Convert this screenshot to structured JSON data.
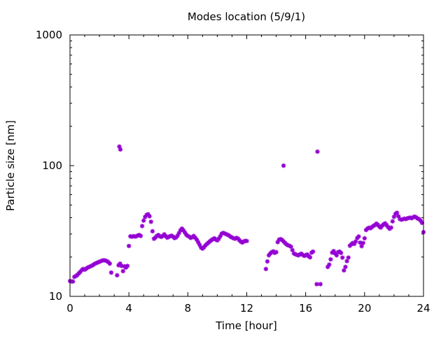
{
  "chart_data": {
    "type": "scatter",
    "title": "Modes location (5/9/1)",
    "xlabel": "Time [hour]",
    "ylabel": "Particle size [nm]",
    "xlim": [
      0,
      24
    ],
    "ylim": [
      10,
      1000
    ],
    "yscale": "log",
    "grid": false,
    "legend": "none",
    "marker_color": "#9400d3",
    "x_ticks": [
      0,
      4,
      8,
      12,
      16,
      20,
      24
    ],
    "y_ticks": [
      10,
      100,
      1000
    ],
    "x_tick_labels": [
      "0",
      "4",
      "8",
      "12",
      "16",
      "20",
      "24"
    ],
    "y_tick_labels": [
      "10",
      "100",
      "1000"
    ],
    "points": [
      [
        0.0,
        13.1
      ],
      [
        0.1,
        13.0
      ],
      [
        0.2,
        13.0
      ],
      [
        0.3,
        14.1
      ],
      [
        0.4,
        14.3
      ],
      [
        0.5,
        14.6
      ],
      [
        0.6,
        15.0
      ],
      [
        0.7,
        15.4
      ],
      [
        0.8,
        15.9
      ],
      [
        0.9,
        16.2
      ],
      [
        1.0,
        16.0
      ],
      [
        1.1,
        16.3
      ],
      [
        1.2,
        16.6
      ],
      [
        1.3,
        16.8
      ],
      [
        1.4,
        17.0
      ],
      [
        1.5,
        17.2
      ],
      [
        1.6,
        17.5
      ],
      [
        1.7,
        17.8
      ],
      [
        1.8,
        18.0
      ],
      [
        1.9,
        18.2
      ],
      [
        2.0,
        18.4
      ],
      [
        2.1,
        18.6
      ],
      [
        2.2,
        18.8
      ],
      [
        2.3,
        18.9
      ],
      [
        2.4,
        18.8
      ],
      [
        2.5,
        18.6
      ],
      [
        2.6,
        18.3
      ],
      [
        2.7,
        17.8
      ],
      [
        2.8,
        15.2
      ],
      [
        3.2,
        14.5
      ],
      [
        3.3,
        17.3
      ],
      [
        3.4,
        17.8
      ],
      [
        3.5,
        17.1
      ],
      [
        3.6,
        15.6
      ],
      [
        3.7,
        17.0
      ],
      [
        3.8,
        16.6
      ],
      [
        3.9,
        17.1
      ],
      [
        3.35,
        140
      ],
      [
        3.42,
        133
      ],
      [
        4.0,
        24.3
      ],
      [
        4.1,
        28.8
      ],
      [
        4.2,
        28.6
      ],
      [
        4.3,
        28.9
      ],
      [
        4.4,
        28.7
      ],
      [
        4.5,
        28.8
      ],
      [
        4.6,
        29.2
      ],
      [
        4.7,
        29.5
      ],
      [
        4.8,
        29.0
      ],
      [
        4.9,
        34.5
      ],
      [
        5.0,
        38.0
      ],
      [
        5.1,
        40.5
      ],
      [
        5.2,
        42.0
      ],
      [
        5.3,
        42.5
      ],
      [
        5.4,
        41.0
      ],
      [
        5.5,
        37.2
      ],
      [
        5.6,
        31.5
      ],
      [
        5.7,
        27.6
      ],
      [
        5.8,
        28.2
      ],
      [
        5.9,
        29.0
      ],
      [
        6.0,
        29.5
      ],
      [
        6.1,
        28.8
      ],
      [
        6.2,
        28.5
      ],
      [
        6.3,
        29.0
      ],
      [
        6.4,
        29.8
      ],
      [
        6.5,
        28.9
      ],
      [
        6.6,
        28.1
      ],
      [
        6.7,
        28.5
      ],
      [
        6.8,
        28.9
      ],
      [
        6.9,
        29.1
      ],
      [
        7.0,
        28.6
      ],
      [
        7.1,
        27.9
      ],
      [
        7.2,
        28.2
      ],
      [
        7.3,
        29.1
      ],
      [
        7.4,
        30.5
      ],
      [
        7.5,
        32.0
      ],
      [
        7.6,
        33.0
      ],
      [
        7.7,
        32.0
      ],
      [
        7.8,
        30.8
      ],
      [
        7.9,
        29.6
      ],
      [
        8.0,
        29.0
      ],
      [
        8.1,
        28.6
      ],
      [
        8.2,
        28.0
      ],
      [
        8.3,
        28.4
      ],
      [
        8.4,
        29.0
      ],
      [
        8.5,
        28.1
      ],
      [
        8.6,
        27.2
      ],
      [
        8.7,
        26.0
      ],
      [
        8.8,
        24.8
      ],
      [
        8.9,
        23.6
      ],
      [
        9.0,
        23.2
      ],
      [
        9.1,
        23.8
      ],
      [
        9.2,
        24.6
      ],
      [
        9.3,
        25.2
      ],
      [
        9.4,
        25.8
      ],
      [
        9.5,
        26.4
      ],
      [
        9.6,
        26.9
      ],
      [
        9.7,
        27.4
      ],
      [
        9.8,
        27.8
      ],
      [
        9.9,
        27.2
      ],
      [
        10.0,
        26.8
      ],
      [
        10.1,
        27.6
      ],
      [
        10.2,
        28.8
      ],
      [
        10.3,
        30.2
      ],
      [
        10.4,
        30.6
      ],
      [
        10.5,
        30.3
      ],
      [
        10.6,
        29.9
      ],
      [
        10.7,
        29.6
      ],
      [
        10.8,
        29.2
      ],
      [
        10.9,
        28.6
      ],
      [
        11.0,
        28.2
      ],
      [
        11.1,
        27.8
      ],
      [
        11.2,
        27.6
      ],
      [
        11.3,
        28.0
      ],
      [
        11.4,
        27.7
      ],
      [
        11.5,
        26.9
      ],
      [
        11.6,
        26.2
      ],
      [
        11.7,
        25.8
      ],
      [
        11.8,
        26.3
      ],
      [
        11.9,
        26.6
      ],
      [
        12.0,
        26.5
      ],
      [
        13.3,
        16.2
      ],
      [
        13.4,
        18.5
      ],
      [
        13.5,
        20.6
      ],
      [
        13.6,
        21.3
      ],
      [
        13.7,
        21.8
      ],
      [
        13.8,
        22.1
      ],
      [
        13.9,
        21.5
      ],
      [
        14.0,
        21.8
      ],
      [
        14.1,
        26.0
      ],
      [
        14.2,
        27.2
      ],
      [
        14.3,
        27.4
      ],
      [
        14.4,
        27.0
      ],
      [
        14.5,
        26.3
      ],
      [
        14.6,
        25.6
      ],
      [
        14.7,
        25.0
      ],
      [
        14.8,
        24.6
      ],
      [
        14.9,
        24.4
      ],
      [
        15.0,
        24.0
      ],
      [
        15.1,
        22.6
      ],
      [
        15.2,
        21.3
      ],
      [
        15.3,
        21.0
      ],
      [
        15.4,
        20.8
      ],
      [
        15.5,
        20.6
      ],
      [
        15.6,
        20.9
      ],
      [
        15.7,
        21.2
      ],
      [
        15.8,
        20.8
      ],
      [
        15.9,
        20.4
      ],
      [
        16.0,
        20.6
      ],
      [
        16.1,
        20.9
      ],
      [
        16.2,
        20.3
      ],
      [
        16.3,
        19.9
      ],
      [
        16.4,
        21.6
      ],
      [
        16.5,
        22.0
      ],
      [
        14.5,
        100
      ],
      [
        16.8,
        128
      ],
      [
        16.75,
        12.4
      ],
      [
        17.0,
        12.4
      ],
      [
        17.5,
        16.8
      ],
      [
        17.6,
        17.5
      ],
      [
        17.7,
        19.2
      ],
      [
        17.8,
        21.6
      ],
      [
        17.9,
        22.2
      ],
      [
        18.0,
        21.3
      ],
      [
        18.1,
        20.6
      ],
      [
        18.2,
        21.8
      ],
      [
        18.3,
        22.0
      ],
      [
        18.4,
        21.5
      ],
      [
        18.5,
        19.8
      ],
      [
        18.6,
        15.8
      ],
      [
        18.7,
        16.8
      ],
      [
        18.8,
        18.6
      ],
      [
        18.9,
        19.8
      ],
      [
        19.0,
        24.4
      ],
      [
        19.1,
        25.0
      ],
      [
        19.2,
        25.6
      ],
      [
        19.3,
        25.2
      ],
      [
        19.4,
        26.3
      ],
      [
        19.5,
        27.9
      ],
      [
        19.6,
        28.7
      ],
      [
        19.7,
        25.8
      ],
      [
        19.8,
        24.2
      ],
      [
        19.9,
        25.6
      ],
      [
        20.0,
        27.8
      ],
      [
        20.1,
        32.2
      ],
      [
        20.2,
        33.0
      ],
      [
        20.3,
        33.5
      ],
      [
        20.4,
        33.2
      ],
      [
        20.5,
        33.9
      ],
      [
        20.6,
        34.6
      ],
      [
        20.7,
        35.1
      ],
      [
        20.8,
        36.0
      ],
      [
        20.9,
        35.3
      ],
      [
        21.0,
        34.2
      ],
      [
        21.1,
        33.6
      ],
      [
        21.2,
        34.8
      ],
      [
        21.3,
        35.6
      ],
      [
        21.4,
        36.2
      ],
      [
        21.5,
        35.0
      ],
      [
        21.6,
        33.8
      ],
      [
        21.7,
        32.9
      ],
      [
        21.8,
        33.6
      ],
      [
        21.9,
        37.5
      ],
      [
        22.0,
        40.6
      ],
      [
        22.1,
        42.8
      ],
      [
        22.2,
        43.6
      ],
      [
        22.3,
        41.0
      ],
      [
        22.4,
        39.0
      ],
      [
        22.5,
        38.6
      ],
      [
        22.6,
        38.9
      ],
      [
        22.7,
        39.3
      ],
      [
        22.8,
        39.0
      ],
      [
        22.9,
        39.5
      ],
      [
        23.0,
        39.8
      ],
      [
        23.1,
        40.0
      ],
      [
        23.2,
        39.6
      ],
      [
        23.3,
        40.3
      ],
      [
        23.4,
        40.8
      ],
      [
        23.5,
        40.2
      ],
      [
        23.6,
        39.4
      ],
      [
        23.7,
        39.0
      ],
      [
        23.8,
        38.0
      ],
      [
        23.9,
        36.5
      ],
      [
        24.0,
        31.0
      ]
    ]
  }
}
